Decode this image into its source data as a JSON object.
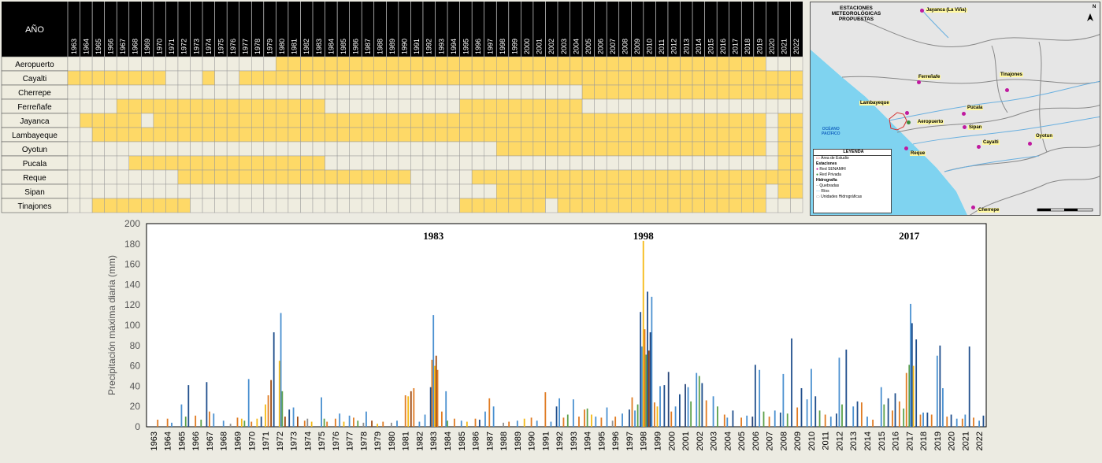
{
  "availability": {
    "header_label": "AÑO",
    "years": [
      "1963",
      "1964",
      "1965",
      "1966",
      "1967",
      "1968",
      "1969",
      "1970",
      "1971",
      "1972",
      "1973",
      "1974",
      "1975",
      "1976",
      "1977",
      "1978",
      "1979",
      "1980",
      "1981",
      "1982",
      "1983",
      "1984",
      "1985",
      "1986",
      "1987",
      "1988",
      "1989",
      "1990",
      "1991",
      "1992",
      "1993",
      "1994",
      "1995",
      "1996",
      "1997",
      "1998",
      "1999",
      "2000",
      "2001",
      "2002",
      "2003",
      "2004",
      "2005",
      "2006",
      "2007",
      "2008",
      "2009",
      "2010",
      "2011",
      "2012",
      "2013",
      "2014",
      "2015",
      "2016",
      "2017",
      "2018",
      "2019",
      "2020",
      "2021",
      "2022"
    ],
    "filled_color": "#fed967",
    "empty_color": "#efede0",
    "stations": [
      {
        "name": "Aeropuerto",
        "ranges": [
          [
            1980,
            2019
          ]
        ]
      },
      {
        "name": "Cayalti",
        "ranges": [
          [
            1963,
            1970
          ],
          [
            1974,
            1974
          ],
          [
            1977,
            2022
          ]
        ]
      },
      {
        "name": "Cherrepe",
        "ranges": [
          [
            2005,
            2022
          ]
        ]
      },
      {
        "name": "Ferreñafe",
        "ranges": [
          [
            1967,
            1983
          ],
          [
            1995,
            2004
          ]
        ]
      },
      {
        "name": "Jayanca",
        "ranges": [
          [
            1964,
            1968
          ],
          [
            1970,
            2019
          ],
          [
            2021,
            2022
          ]
        ]
      },
      {
        "name": "Lambayeque",
        "ranges": [
          [
            1965,
            2019
          ],
          [
            2021,
            2022
          ]
        ]
      },
      {
        "name": "Oyotun",
        "ranges": [
          [
            1998,
            2019
          ],
          [
            2021,
            2022
          ]
        ]
      },
      {
        "name": "Pucala",
        "ranges": [
          [
            1968,
            1983
          ],
          [
            2021,
            2022
          ]
        ]
      },
      {
        "name": "Reque",
        "ranges": [
          [
            1972,
            1990
          ],
          [
            1996,
            2022
          ]
        ]
      },
      {
        "name": "Sipan",
        "ranges": [
          [
            1998,
            2019
          ],
          [
            2021,
            2022
          ]
        ]
      },
      {
        "name": "Tinajones",
        "ranges": [
          [
            1965,
            1972
          ],
          [
            1995,
            2001
          ],
          [
            2003,
            2019
          ]
        ]
      }
    ]
  },
  "map": {
    "title_line1": "ESTACIONES METEOROLÓGICAS",
    "title_line2": "PROPUESTAS",
    "ocean_label_line1": "OCÉANO",
    "ocean_label_line2": "PACÍFICO",
    "north_label": "N",
    "stations": [
      {
        "name": "Jayanca (La Viña)",
        "type": "senamhi"
      },
      {
        "name": "Ferreñafe",
        "type": "senamhi"
      },
      {
        "name": "Tinajones",
        "type": "senamhi"
      },
      {
        "name": "Lambayeque",
        "type": "senamhi"
      },
      {
        "name": "Pucala",
        "type": "senamhi"
      },
      {
        "name": "Aeropuerto",
        "type": "privada"
      },
      {
        "name": "Sipan",
        "type": "senamhi"
      },
      {
        "name": "Cayalti",
        "type": "senamhi"
      },
      {
        "name": "Oyotun",
        "type": "senamhi"
      },
      {
        "name": "Reque",
        "type": "senamhi"
      },
      {
        "name": "Cherrepe",
        "type": "senamhi"
      }
    ],
    "senamhi_color": "#c0199f",
    "privada_color": "#3a8a3a",
    "legend": {
      "title": "LEYENDA",
      "study_area": "Área de Estudio",
      "stations_header": "Estaciones",
      "red_senamhi": "Red SENAMHI",
      "red_privada": "Red Privada",
      "hydro_header": "Hidrografía",
      "quebradas": "Quebradas",
      "rios": "Ríos",
      "unidades": "Unidades Hidrográficas"
    }
  },
  "chart_data": {
    "type": "bar",
    "ylabel": "Precipitación máxima diaria (mm)",
    "ylim": [
      0,
      200
    ],
    "yticks": [
      0,
      20,
      40,
      60,
      80,
      100,
      120,
      140,
      160,
      180,
      200
    ],
    "xlim": [
      1963,
      2022
    ],
    "annotations": [
      {
        "text": "1983",
        "x": 1983
      },
      {
        "text": "1998",
        "x": 1998
      },
      {
        "text": "2017",
        "x": 2017
      }
    ],
    "series_colors": [
      "#1f4e8c",
      "#e07b22",
      "#4a90d0",
      "#f5b915",
      "#8f8f8f",
      "#5ca04a",
      "#264478",
      "#9e480e",
      "#a5a5a5",
      "#2e75b6",
      "#70ad47"
    ],
    "peaks": [
      {
        "x": 1963.3,
        "y": 7,
        "c": 1
      },
      {
        "x": 1964.0,
        "y": 8,
        "c": 1
      },
      {
        "x": 1964.3,
        "y": 4,
        "c": 2
      },
      {
        "x": 1965.0,
        "y": 22,
        "c": 2
      },
      {
        "x": 1965.3,
        "y": 10,
        "c": 5
      },
      {
        "x": 1965.5,
        "y": 41,
        "c": 0
      },
      {
        "x": 1966.0,
        "y": 11,
        "c": 1
      },
      {
        "x": 1966.4,
        "y": 7,
        "c": 5
      },
      {
        "x": 1966.8,
        "y": 44,
        "c": 0
      },
      {
        "x": 1967.0,
        "y": 15,
        "c": 1
      },
      {
        "x": 1967.3,
        "y": 13,
        "c": 2
      },
      {
        "x": 1968.0,
        "y": 6,
        "c": 2
      },
      {
        "x": 1968.5,
        "y": 3,
        "c": 4
      },
      {
        "x": 1969.0,
        "y": 9,
        "c": 1
      },
      {
        "x": 1969.3,
        "y": 8,
        "c": 3
      },
      {
        "x": 1969.5,
        "y": 6,
        "c": 5
      },
      {
        "x": 1969.8,
        "y": 47,
        "c": 2
      },
      {
        "x": 1970.0,
        "y": 5,
        "c": 1
      },
      {
        "x": 1970.4,
        "y": 8,
        "c": 3
      },
      {
        "x": 1970.7,
        "y": 10,
        "c": 0
      },
      {
        "x": 1971.0,
        "y": 22,
        "c": 3
      },
      {
        "x": 1971.2,
        "y": 31,
        "c": 1
      },
      {
        "x": 1971.4,
        "y": 46,
        "c": 7
      },
      {
        "x": 1971.6,
        "y": 93,
        "c": 0
      },
      {
        "x": 1972.0,
        "y": 65,
        "c": 3
      },
      {
        "x": 1972.1,
        "y": 112,
        "c": 2
      },
      {
        "x": 1972.2,
        "y": 35,
        "c": 5
      },
      {
        "x": 1972.4,
        "y": 10,
        "c": 7
      },
      {
        "x": 1972.7,
        "y": 17,
        "c": 0
      },
      {
        "x": 1973.0,
        "y": 19,
        "c": 2
      },
      {
        "x": 1973.3,
        "y": 10,
        "c": 7
      },
      {
        "x": 1973.8,
        "y": 6,
        "c": 1
      },
      {
        "x": 1974.0,
        "y": 8,
        "c": 4
      },
      {
        "x": 1974.3,
        "y": 5,
        "c": 3
      },
      {
        "x": 1975.0,
        "y": 29,
        "c": 2
      },
      {
        "x": 1975.2,
        "y": 8,
        "c": 5
      },
      {
        "x": 1975.4,
        "y": 5,
        "c": 1
      },
      {
        "x": 1976.0,
        "y": 8,
        "c": 1
      },
      {
        "x": 1976.3,
        "y": 13,
        "c": 2
      },
      {
        "x": 1976.6,
        "y": 5,
        "c": 3
      },
      {
        "x": 1977.0,
        "y": 11,
        "c": 2
      },
      {
        "x": 1977.3,
        "y": 9,
        "c": 1
      },
      {
        "x": 1977.6,
        "y": 6,
        "c": 5
      },
      {
        "x": 1978.0,
        "y": 4,
        "c": 4
      },
      {
        "x": 1978.2,
        "y": 15,
        "c": 2
      },
      {
        "x": 1978.6,
        "y": 6,
        "c": 7
      },
      {
        "x": 1979.0,
        "y": 3,
        "c": 3
      },
      {
        "x": 1979.4,
        "y": 5,
        "c": 1
      },
      {
        "x": 1980.0,
        "y": 4,
        "c": 4
      },
      {
        "x": 1980.4,
        "y": 6,
        "c": 2
      },
      {
        "x": 1981.0,
        "y": 31,
        "c": 1
      },
      {
        "x": 1981.2,
        "y": 30,
        "c": 3
      },
      {
        "x": 1981.4,
        "y": 35,
        "c": 7
      },
      {
        "x": 1981.6,
        "y": 38,
        "c": 1
      },
      {
        "x": 1982.0,
        "y": 5,
        "c": 2
      },
      {
        "x": 1982.4,
        "y": 12,
        "c": 2
      },
      {
        "x": 1982.8,
        "y": 39,
        "c": 0
      },
      {
        "x": 1982.9,
        "y": 66,
        "c": 1
      },
      {
        "x": 1983.0,
        "y": 110,
        "c": 2
      },
      {
        "x": 1983.1,
        "y": 60,
        "c": 3
      },
      {
        "x": 1983.2,
        "y": 70,
        "c": 7
      },
      {
        "x": 1983.3,
        "y": 56,
        "c": 1
      },
      {
        "x": 1983.6,
        "y": 15,
        "c": 1
      },
      {
        "x": 1983.9,
        "y": 35,
        "c": 2
      },
      {
        "x": 1984.0,
        "y": 6,
        "c": 5
      },
      {
        "x": 1984.5,
        "y": 8,
        "c": 1
      },
      {
        "x": 1985.0,
        "y": 6,
        "c": 2
      },
      {
        "x": 1985.4,
        "y": 5,
        "c": 3
      },
      {
        "x": 1986.0,
        "y": 8,
        "c": 1
      },
      {
        "x": 1986.3,
        "y": 7,
        "c": 0
      },
      {
        "x": 1986.7,
        "y": 15,
        "c": 2
      },
      {
        "x": 1987.0,
        "y": 28,
        "c": 1
      },
      {
        "x": 1987.3,
        "y": 20,
        "c": 2
      },
      {
        "x": 1988.0,
        "y": 4,
        "c": 4
      },
      {
        "x": 1988.4,
        "y": 5,
        "c": 1
      },
      {
        "x": 1989.0,
        "y": 6,
        "c": 2
      },
      {
        "x": 1989.5,
        "y": 8,
        "c": 3
      },
      {
        "x": 1990.0,
        "y": 9,
        "c": 1
      },
      {
        "x": 1990.4,
        "y": 6,
        "c": 2
      },
      {
        "x": 1991.0,
        "y": 34,
        "c": 1
      },
      {
        "x": 1991.4,
        "y": 5,
        "c": 2
      },
      {
        "x": 1991.8,
        "y": 20,
        "c": 0
      },
      {
        "x": 1992.0,
        "y": 28,
        "c": 2
      },
      {
        "x": 1992.3,
        "y": 9,
        "c": 1
      },
      {
        "x": 1992.6,
        "y": 12,
        "c": 5
      },
      {
        "x": 1993.0,
        "y": 27,
        "c": 2
      },
      {
        "x": 1993.4,
        "y": 10,
        "c": 1
      },
      {
        "x": 1993.8,
        "y": 17,
        "c": 1
      },
      {
        "x": 1994.0,
        "y": 18,
        "c": 5
      },
      {
        "x": 1994.3,
        "y": 12,
        "c": 3
      },
      {
        "x": 1994.6,
        "y": 10,
        "c": 2
      },
      {
        "x": 1995.0,
        "y": 9,
        "c": 1
      },
      {
        "x": 1995.4,
        "y": 19,
        "c": 2
      },
      {
        "x": 1995.8,
        "y": 6,
        "c": 4
      },
      {
        "x": 1996.0,
        "y": 10,
        "c": 1
      },
      {
        "x": 1996.5,
        "y": 13,
        "c": 2
      },
      {
        "x": 1997.0,
        "y": 17,
        "c": 0
      },
      {
        "x": 1997.2,
        "y": 29,
        "c": 1
      },
      {
        "x": 1997.4,
        "y": 16,
        "c": 2
      },
      {
        "x": 1997.6,
        "y": 22,
        "c": 5
      },
      {
        "x": 1997.8,
        "y": 113,
        "c": 0
      },
      {
        "x": 1997.9,
        "y": 79,
        "c": 2
      },
      {
        "x": 1998.0,
        "y": 183,
        "c": 3
      },
      {
        "x": 1998.1,
        "y": 96,
        "c": 1
      },
      {
        "x": 1998.2,
        "y": 71,
        "c": 5
      },
      {
        "x": 1998.3,
        "y": 133,
        "c": 0
      },
      {
        "x": 1998.4,
        "y": 75,
        "c": 7
      },
      {
        "x": 1998.5,
        "y": 93,
        "c": 6
      },
      {
        "x": 1998.6,
        "y": 128,
        "c": 2
      },
      {
        "x": 1998.8,
        "y": 24,
        "c": 1
      },
      {
        "x": 1999.0,
        "y": 20,
        "c": 3
      },
      {
        "x": 1999.2,
        "y": 40,
        "c": 2
      },
      {
        "x": 1999.5,
        "y": 41,
        "c": 0
      },
      {
        "x": 1999.8,
        "y": 54,
        "c": 6
      },
      {
        "x": 2000.0,
        "y": 15,
        "c": 1
      },
      {
        "x": 2000.3,
        "y": 20,
        "c": 2
      },
      {
        "x": 2000.6,
        "y": 32,
        "c": 0
      },
      {
        "x": 2001.0,
        "y": 42,
        "c": 6
      },
      {
        "x": 2001.2,
        "y": 39,
        "c": 2
      },
      {
        "x": 2001.4,
        "y": 25,
        "c": 5
      },
      {
        "x": 2001.8,
        "y": 53,
        "c": 2
      },
      {
        "x": 2002.0,
        "y": 50,
        "c": 5
      },
      {
        "x": 2002.2,
        "y": 43,
        "c": 0
      },
      {
        "x": 2002.5,
        "y": 26,
        "c": 1
      },
      {
        "x": 2003.0,
        "y": 30,
        "c": 2
      },
      {
        "x": 2003.3,
        "y": 20,
        "c": 5
      },
      {
        "x": 2003.8,
        "y": 12,
        "c": 1
      },
      {
        "x": 2004.0,
        "y": 9,
        "c": 2
      },
      {
        "x": 2004.4,
        "y": 16,
        "c": 0
      },
      {
        "x": 2005.0,
        "y": 9,
        "c": 1
      },
      {
        "x": 2005.4,
        "y": 11,
        "c": 2
      },
      {
        "x": 2005.8,
        "y": 10,
        "c": 6
      },
      {
        "x": 2006.0,
        "y": 61,
        "c": 0
      },
      {
        "x": 2006.3,
        "y": 56,
        "c": 2
      },
      {
        "x": 2006.6,
        "y": 15,
        "c": 5
      },
      {
        "x": 2007.0,
        "y": 10,
        "c": 1
      },
      {
        "x": 2007.4,
        "y": 16,
        "c": 2
      },
      {
        "x": 2007.8,
        "y": 14,
        "c": 0
      },
      {
        "x": 2008.0,
        "y": 52,
        "c": 2
      },
      {
        "x": 2008.3,
        "y": 13,
        "c": 5
      },
      {
        "x": 2008.6,
        "y": 87,
        "c": 0
      },
      {
        "x": 2009.0,
        "y": 19,
        "c": 1
      },
      {
        "x": 2009.3,
        "y": 38,
        "c": 0
      },
      {
        "x": 2009.7,
        "y": 27,
        "c": 2
      },
      {
        "x": 2010.0,
        "y": 57,
        "c": 2
      },
      {
        "x": 2010.3,
        "y": 30,
        "c": 0
      },
      {
        "x": 2010.6,
        "y": 16,
        "c": 5
      },
      {
        "x": 2011.0,
        "y": 12,
        "c": 1
      },
      {
        "x": 2011.4,
        "y": 10,
        "c": 2
      },
      {
        "x": 2011.8,
        "y": 13,
        "c": 0
      },
      {
        "x": 2012.0,
        "y": 68,
        "c": 2
      },
      {
        "x": 2012.2,
        "y": 22,
        "c": 5
      },
      {
        "x": 2012.5,
        "y": 76,
        "c": 0
      },
      {
        "x": 2013.0,
        "y": 20,
        "c": 2
      },
      {
        "x": 2013.3,
        "y": 25,
        "c": 0
      },
      {
        "x": 2013.6,
        "y": 24,
        "c": 1
      },
      {
        "x": 2014.0,
        "y": 10,
        "c": 2
      },
      {
        "x": 2014.4,
        "y": 7,
        "c": 1
      },
      {
        "x": 2015.0,
        "y": 39,
        "c": 2
      },
      {
        "x": 2015.2,
        "y": 22,
        "c": 5
      },
      {
        "x": 2015.5,
        "y": 28,
        "c": 0
      },
      {
        "x": 2015.8,
        "y": 16,
        "c": 1
      },
      {
        "x": 2016.0,
        "y": 33,
        "c": 0
      },
      {
        "x": 2016.3,
        "y": 25,
        "c": 1
      },
      {
        "x": 2016.6,
        "y": 18,
        "c": 5
      },
      {
        "x": 2016.8,
        "y": 53,
        "c": 1
      },
      {
        "x": 2017.0,
        "y": 61,
        "c": 5
      },
      {
        "x": 2017.1,
        "y": 121,
        "c": 2
      },
      {
        "x": 2017.2,
        "y": 102,
        "c": 0
      },
      {
        "x": 2017.3,
        "y": 60,
        "c": 3
      },
      {
        "x": 2017.5,
        "y": 86,
        "c": 0
      },
      {
        "x": 2017.8,
        "y": 12,
        "c": 1
      },
      {
        "x": 2018.0,
        "y": 14,
        "c": 2
      },
      {
        "x": 2018.3,
        "y": 14,
        "c": 0
      },
      {
        "x": 2018.6,
        "y": 12,
        "c": 1
      },
      {
        "x": 2019.0,
        "y": 70,
        "c": 2
      },
      {
        "x": 2019.2,
        "y": 80,
        "c": 0
      },
      {
        "x": 2019.4,
        "y": 38,
        "c": 2
      },
      {
        "x": 2019.7,
        "y": 10,
        "c": 1
      },
      {
        "x": 2020.0,
        "y": 12,
        "c": 0
      },
      {
        "x": 2020.4,
        "y": 8,
        "c": 2
      },
      {
        "x": 2020.8,
        "y": 8,
        "c": 1
      },
      {
        "x": 2021.0,
        "y": 12,
        "c": 2
      },
      {
        "x": 2021.3,
        "y": 79,
        "c": 0
      },
      {
        "x": 2021.6,
        "y": 9,
        "c": 1
      },
      {
        "x": 2022.0,
        "y": 6,
        "c": 2
      },
      {
        "x": 2022.3,
        "y": 11,
        "c": 0
      }
    ]
  }
}
